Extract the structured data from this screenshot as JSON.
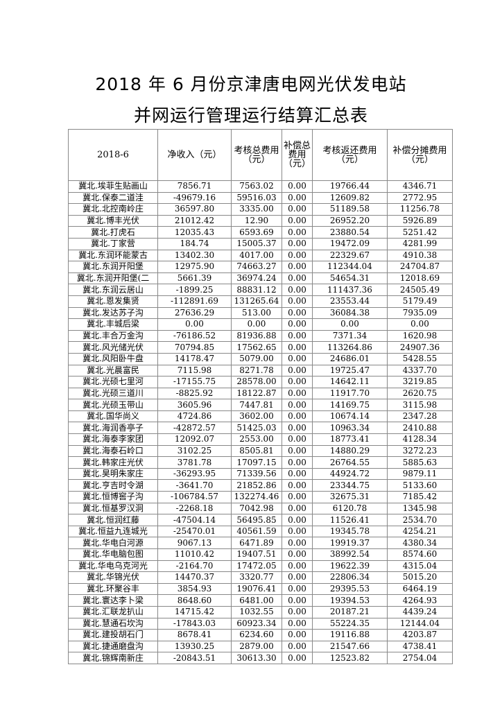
{
  "title_line1": "2018 年 6 月份京津唐电网光伏发电站",
  "title_line2": "并网运行管理运行结算汇总表",
  "headers": [
    "2018-6",
    "净收入（元）",
    "考核总费用（元）",
    "补偿总费用（元）",
    "考核返还费用（元）",
    "补偿分摊费用（元）"
  ],
  "rows": [
    [
      "冀北.埃菲生贴画山",
      "7856.71",
      "7563.02",
      "0.00",
      "19766.44",
      "4346.71"
    ],
    [
      "冀北.保泰二道洼",
      "-49679.16",
      "59516.03",
      "0.00",
      "12609.82",
      "2772.95"
    ],
    [
      "冀北.北控南岭庄",
      "36597.80",
      "3335.00",
      "0.00",
      "51189.58",
      "11256.78"
    ],
    [
      "冀北.博丰光伏",
      "21012.42",
      "12.90",
      "0.00",
      "26952.20",
      "5926.89"
    ],
    [
      "冀北.打虎石",
      "12035.43",
      "6593.69",
      "0.00",
      "23880.54",
      "5251.42"
    ],
    [
      "冀北.丁家营",
      "184.74",
      "15005.37",
      "0.00",
      "19472.09",
      "4281.99"
    ],
    [
      "冀北.东润环能蒙古",
      "13402.30",
      "4017.00",
      "0.00",
      "22329.67",
      "4910.38"
    ],
    [
      "冀北.东润开阳堡",
      "12975.90",
      "74663.27",
      "0.00",
      "112344.04",
      "24704.87"
    ],
    [
      "冀北.东润开阳堡(二",
      "5661.39",
      "36974.24",
      "0.00",
      "54654.31",
      "12018.69"
    ],
    [
      "冀北.东润云居山",
      "-1899.25",
      "88831.12",
      "0.00",
      "111437.36",
      "24505.49"
    ],
    [
      "冀北.恩发集贤",
      "-112891.69",
      "131265.64",
      "0.00",
      "23553.44",
      "5179.49"
    ],
    [
      "冀北.发达苏子沟",
      "27636.29",
      "513.00",
      "0.00",
      "36084.38",
      "7935.09"
    ],
    [
      "冀北.丰城后梁",
      "0.00",
      "0.00",
      "0.00",
      "0.00",
      "0.00"
    ],
    [
      "冀北.丰合万金沟",
      "-76186.52",
      "81936.88",
      "0.00",
      "7371.34",
      "1620.98"
    ],
    [
      "冀北.风光储光伏",
      "70794.85",
      "17562.65",
      "0.00",
      "113264.86",
      "24907.36"
    ],
    [
      "冀北.风阳卧牛盘",
      "14178.47",
      "5079.00",
      "0.00",
      "24686.01",
      "5428.55"
    ],
    [
      "冀北.光晨富民",
      "7115.98",
      "8271.78",
      "0.00",
      "19725.47",
      "4337.70"
    ],
    [
      "冀北.光硕七里河",
      "-17155.75",
      "28578.00",
      "0.00",
      "14642.11",
      "3219.85"
    ],
    [
      "冀北.光硕三道川",
      "-8825.92",
      "18122.87",
      "0.00",
      "11917.70",
      "2620.75"
    ],
    [
      "冀北.光硕玉带山",
      "3605.96",
      "7447.81",
      "0.00",
      "14169.75",
      "3115.98"
    ],
    [
      "冀北.国华尚义",
      "4724.86",
      "3602.00",
      "0.00",
      "10674.14",
      "2347.28"
    ],
    [
      "冀北.海润香亭子",
      "-42872.57",
      "51425.03",
      "0.00",
      "10963.34",
      "2410.88"
    ],
    [
      "冀北.海泰李家团",
      "12092.07",
      "2553.00",
      "0.00",
      "18773.41",
      "4128.34"
    ],
    [
      "冀北.海泰石岭口",
      "3102.25",
      "8505.81",
      "0.00",
      "14880.29",
      "3272.23"
    ],
    [
      "冀北.韩家庄光伏",
      "3781.78",
      "17097.15",
      "0.00",
      "26764.55",
      "5885.63"
    ],
    [
      "冀北.昊明朱家庄",
      "-36293.95",
      "71339.56",
      "0.00",
      "44924.72",
      "9879.11"
    ],
    [
      "冀北.亨吉时令湖",
      "-3641.70",
      "21852.86",
      "0.00",
      "23344.75",
      "5133.60"
    ],
    [
      "冀北.恒博窖子沟",
      "-106784.57",
      "132274.46",
      "0.00",
      "32675.31",
      "7185.42"
    ],
    [
      "冀北.恒基罗汉洞",
      "-2268.18",
      "7042.98",
      "0.00",
      "6120.78",
      "1345.98"
    ],
    [
      "冀北.恒润红藤",
      "-47504.14",
      "56495.85",
      "0.00",
      "11526.41",
      "2534.70"
    ],
    [
      "冀北.恒益九连城光",
      "-25470.01",
      "40561.59",
      "0.00",
      "19345.78",
      "4254.21"
    ],
    [
      "冀北.华电白河源",
      "9067.13",
      "6471.89",
      "0.00",
      "19919.37",
      "4380.34"
    ],
    [
      "冀北.华电脑包图",
      "11010.42",
      "19407.51",
      "0.00",
      "38992.54",
      "8574.60"
    ],
    [
      "冀北.华电乌克河光",
      "-2164.70",
      "17472.05",
      "0.00",
      "19622.39",
      "4315.04"
    ],
    [
      "冀北.华锦光伏",
      "14470.37",
      "3320.77",
      "0.00",
      "22806.34",
      "5015.20"
    ],
    [
      "冀北.环聚谷丰",
      "3854.93",
      "19076.41",
      "0.00",
      "29395.53",
      "6464.19"
    ],
    [
      "冀北.寰达李卜梁",
      "8648.60",
      "6481.00",
      "0.00",
      "19394.53",
      "4264.93"
    ],
    [
      "冀北.汇联龙扒山",
      "14715.42",
      "1032.55",
      "0.00",
      "20187.21",
      "4439.24"
    ],
    [
      "冀北.慧通石坎沟",
      "-17843.03",
      "60923.34",
      "0.00",
      "55224.35",
      "12144.04"
    ],
    [
      "冀北.建投胡石门",
      "8678.41",
      "6234.60",
      "0.00",
      "19116.88",
      "4203.87"
    ],
    [
      "冀北.捷通磨盘沟",
      "13930.25",
      "2879.00",
      "0.00",
      "21547.66",
      "4738.41"
    ],
    [
      "冀北.锦辉南新庄",
      "-20843.51",
      "30613.30",
      "0.00",
      "12523.82",
      "2754.04"
    ]
  ]
}
